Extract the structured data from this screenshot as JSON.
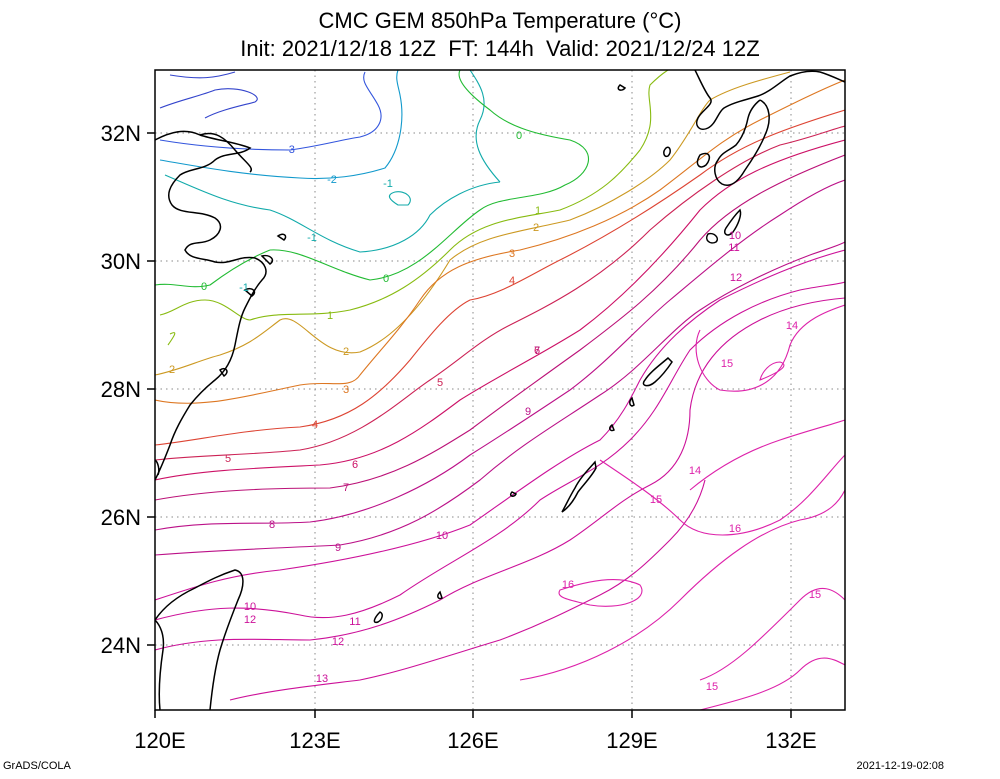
{
  "title": {
    "line1": "CMC GEM 850hPa Temperature (°C)",
    "line2": "Init: 2021/12/18 12Z  FT: 144h  Valid: 2021/12/24 12Z"
  },
  "footer": {
    "left": "GrADS/COLA",
    "right": "2021-12-19-02:08"
  },
  "axes": {
    "lon_labels": [
      "120E",
      "123E",
      "126E",
      "129E",
      "132E"
    ],
    "lat_labels": [
      "24N",
      "26N",
      "28N",
      "30N",
      "32N"
    ],
    "lon_range": [
      120,
      133
    ],
    "lat_range": [
      23,
      33
    ],
    "grid": "dotted"
  },
  "contour_labels": [
    {
      "text": "-3",
      "color": "#3355dd"
    },
    {
      "text": "-2",
      "color": "#1199cc"
    },
    {
      "text": "-1",
      "color": "#11aaaa"
    },
    {
      "text": "-1",
      "color": "#11aaaa"
    },
    {
      "text": "-1",
      "color": "#11aaaa"
    },
    {
      "text": "0",
      "color": "#22bb33"
    },
    {
      "text": "0",
      "color": "#22bb33"
    },
    {
      "text": "0",
      "color": "#22bb33"
    },
    {
      "text": "1",
      "color": "#88bb11"
    },
    {
      "text": "1",
      "color": "#88bb11"
    },
    {
      "text": "2",
      "color": "#cc9922"
    },
    {
      "text": "2",
      "color": "#cc9922"
    },
    {
      "text": "2",
      "color": "#cc9922"
    },
    {
      "text": "3",
      "color": "#dd7722"
    },
    {
      "text": "3",
      "color": "#dd7722"
    },
    {
      "text": "4",
      "color": "#dd4433"
    },
    {
      "text": "4",
      "color": "#dd4433"
    },
    {
      "text": "5",
      "color": "#cc2255"
    },
    {
      "text": "5",
      "color": "#cc2255"
    },
    {
      "text": "6",
      "color": "#cc1166"
    },
    {
      "text": "6",
      "color": "#cc1166"
    },
    {
      "text": "7",
      "color": "#bb1177"
    },
    {
      "text": "7",
      "color": "#bb1177"
    },
    {
      "text": "8",
      "color": "#bb1188"
    },
    {
      "text": "9",
      "color": "#bb1188"
    },
    {
      "text": "9",
      "color": "#bb1188"
    },
    {
      "text": "10",
      "color": "#cc1199"
    },
    {
      "text": "10",
      "color": "#cc1199"
    },
    {
      "text": "10",
      "color": "#cc1199"
    },
    {
      "text": "11",
      "color": "#cc1199"
    },
    {
      "text": "11",
      "color": "#cc1199"
    },
    {
      "text": "12",
      "color": "#cc1199"
    },
    {
      "text": "12",
      "color": "#cc1199"
    },
    {
      "text": "12",
      "color": "#cc1199"
    },
    {
      "text": "13",
      "color": "#cc1199"
    },
    {
      "text": "14",
      "color": "#dd22aa"
    },
    {
      "text": "14",
      "color": "#dd22aa"
    },
    {
      "text": "15",
      "color": "#dd22aa"
    },
    {
      "text": "15",
      "color": "#dd22aa"
    },
    {
      "text": "15",
      "color": "#dd22aa"
    },
    {
      "text": "15",
      "color": "#dd22aa"
    },
    {
      "text": "16",
      "color": "#dd22aa"
    },
    {
      "text": "16",
      "color": "#dd22aa"
    }
  ]
}
